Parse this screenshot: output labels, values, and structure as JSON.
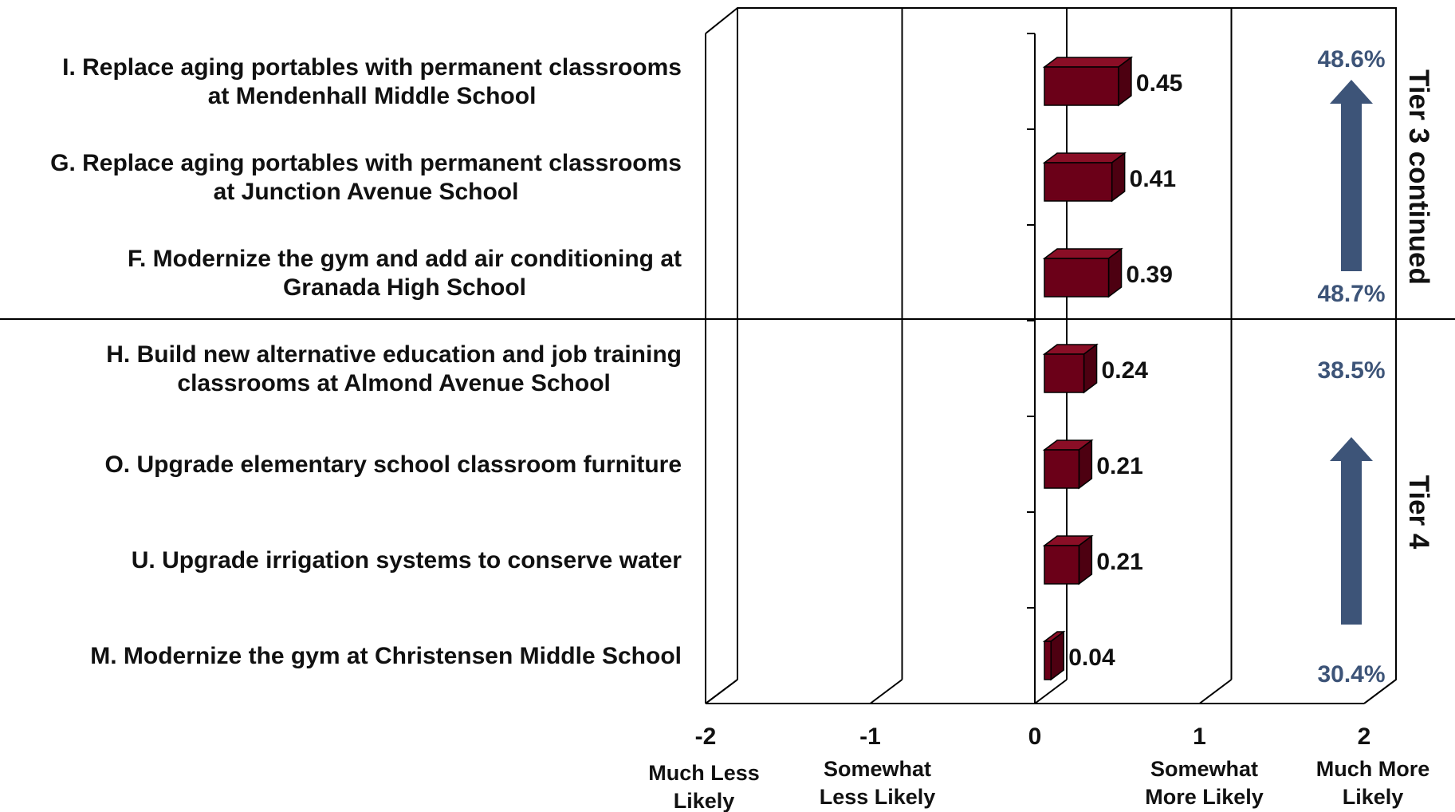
{
  "chart_data": {
    "type": "bar",
    "orientation": "horizontal",
    "categories": [
      [
        "I. Replace aging portables with permanent classrooms",
        "at Mendenhall Middle School"
      ],
      [
        "G. Replace aging portables with permanent classrooms",
        "at Junction Avenue School"
      ],
      [
        "F. Modernize the gym and add air conditioning at",
        "Granada High School"
      ],
      [
        "H. Build new alternative education and job training",
        "classrooms at Almond Avenue School"
      ],
      [
        "O. Upgrade elementary school classroom furniture"
      ],
      [
        "U. Upgrade irrigation systems to conserve water"
      ],
      [
        "M. Modernize the gym at Christensen Middle School"
      ]
    ],
    "values": [
      0.45,
      0.41,
      0.39,
      0.24,
      0.21,
      0.21,
      0.04
    ],
    "value_labels": [
      "0.45",
      "0.41",
      "0.39",
      "0.24",
      "0.21",
      "0.21",
      "0.04"
    ],
    "xlim": [
      -2,
      2
    ],
    "x_ticks": [
      "-2",
      "-1",
      "0",
      "1",
      "2"
    ],
    "x_tick_descriptions": [
      [
        "Much Less",
        "Likely"
      ],
      [
        "Somewhat",
        "Less Likely"
      ],
      [],
      [
        "Somewhat",
        "More Likely"
      ],
      [
        "Much More",
        "Likely"
      ]
    ],
    "bar_color": "#6b0018",
    "grid": true,
    "groups": [
      {
        "label": "Tier 3 continued",
        "row_count": 3,
        "top_percent": "48.6%",
        "bottom_percent": "48.7%"
      },
      {
        "label": "Tier 4",
        "row_count": 4,
        "top_percent": "38.5%",
        "bottom_percent": "30.4%"
      }
    ],
    "arrow_color": "#3d5478",
    "percent_color": "#3d5478"
  }
}
